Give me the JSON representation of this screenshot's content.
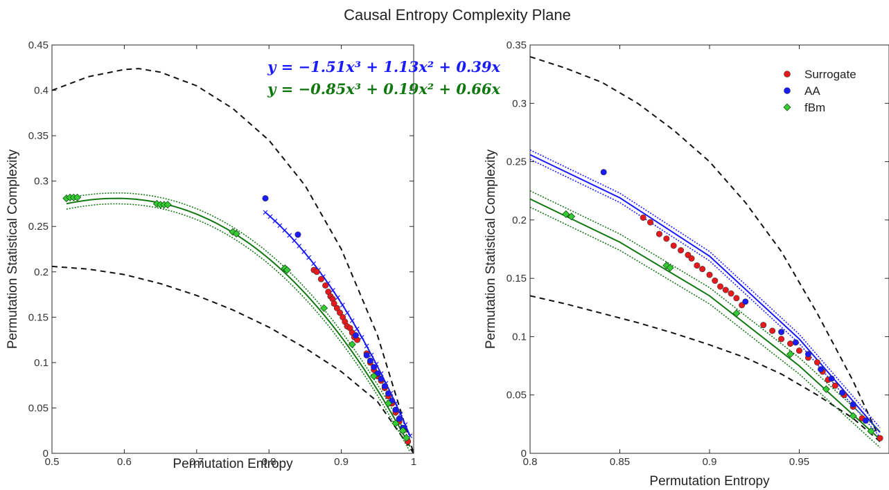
{
  "figure": {
    "title": "Causal Entropy Complexity Plane"
  },
  "chart_data": [
    {
      "type": "scatter",
      "xlabel": "Permutation Entropy",
      "ylabel": "Permutation Statistical Complexity",
      "xlim": [
        0.5,
        1.0
      ],
      "ylim": [
        0,
        0.45
      ],
      "xticks": [
        "0.5",
        "0.6",
        "0.7",
        "0.8",
        "0.9",
        "1"
      ],
      "yticks": [
        "0",
        "0.05",
        "0.1",
        "0.15",
        "0.2",
        "0.25",
        "0.3",
        "0.35",
        "0.4",
        "0.45"
      ],
      "grid": false,
      "annotations": [
        {
          "text": "y = −1.51x³ + 1.13x² + 0.39x",
          "color": "#1a1aff"
        },
        {
          "text": "y = −0.85x³ + 0.19x² + 0.66x",
          "color": "#117711"
        }
      ],
      "bounds": {
        "upper": [
          [
            0.5,
            0.4
          ],
          [
            0.55,
            0.415
          ],
          [
            0.6,
            0.423
          ],
          [
            0.62,
            0.424
          ],
          [
            0.65,
            0.42
          ],
          [
            0.7,
            0.405
          ],
          [
            0.75,
            0.38
          ],
          [
            0.8,
            0.345
          ],
          [
            0.85,
            0.295
          ],
          [
            0.9,
            0.225
          ],
          [
            0.95,
            0.13
          ],
          [
            1.0,
            0.0
          ]
        ],
        "lower": [
          [
            0.5,
            0.206
          ],
          [
            0.55,
            0.203
          ],
          [
            0.6,
            0.197
          ],
          [
            0.65,
            0.187
          ],
          [
            0.7,
            0.174
          ],
          [
            0.75,
            0.158
          ],
          [
            0.8,
            0.139
          ],
          [
            0.85,
            0.116
          ],
          [
            0.9,
            0.09
          ],
          [
            0.95,
            0.057
          ],
          [
            1.0,
            0.0
          ]
        ]
      },
      "fits": [
        {
          "color": "#1a1aff",
          "style": "crossed",
          "coeffs": [
            -1.51,
            1.13,
            0.39
          ],
          "xrange": [
            0.795,
            0.995
          ]
        },
        {
          "color": "#117711",
          "style": "solid",
          "coeffs": [
            -0.85,
            0.19,
            0.66
          ],
          "xrange": [
            0.52,
            0.995
          ],
          "band": 0.006
        }
      ],
      "series": [
        {
          "name": "Surrogate",
          "marker": "circle",
          "color": "#e8191c",
          "x": [
            0.862,
            0.866,
            0.872,
            0.878,
            0.882,
            0.885,
            0.888,
            0.89,
            0.894,
            0.898,
            0.902,
            0.905,
            0.908,
            0.912,
            0.915,
            0.918,
            0.922,
            0.935,
            0.94,
            0.945,
            0.95,
            0.955,
            0.96,
            0.965,
            0.97,
            0.975,
            0.98,
            0.985,
            0.992
          ],
          "y": [
            0.202,
            0.2,
            0.192,
            0.185,
            0.178,
            0.173,
            0.17,
            0.165,
            0.16,
            0.155,
            0.15,
            0.145,
            0.14,
            0.138,
            0.133,
            0.128,
            0.125,
            0.11,
            0.1,
            0.092,
            0.085,
            0.08,
            0.072,
            0.063,
            0.055,
            0.045,
            0.035,
            0.025,
            0.013
          ]
        },
        {
          "name": "AA",
          "marker": "circle",
          "color": "#1a1aff",
          "x": [
            0.795,
            0.84,
            0.92,
            0.935,
            0.94,
            0.945,
            0.95,
            0.955,
            0.96,
            0.965,
            0.97,
            0.975,
            0.98,
            0.985
          ],
          "y": [
            0.281,
            0.241,
            0.13,
            0.108,
            0.102,
            0.095,
            0.088,
            0.082,
            0.074,
            0.066,
            0.058,
            0.048,
            0.038,
            0.028
          ]
        },
        {
          "name": "fBm",
          "marker": "diamond",
          "color": "#33cc33",
          "x": [
            0.52,
            0.525,
            0.53,
            0.535,
            0.645,
            0.65,
            0.655,
            0.66,
            0.75,
            0.755,
            0.822,
            0.825,
            0.876,
            0.915,
            0.945,
            0.965,
            0.975,
            0.985,
            0.99
          ],
          "y": [
            0.281,
            0.282,
            0.282,
            0.282,
            0.275,
            0.274,
            0.274,
            0.274,
            0.244,
            0.242,
            0.204,
            0.202,
            0.16,
            0.12,
            0.085,
            0.055,
            0.033,
            0.025,
            0.017
          ]
        }
      ]
    },
    {
      "type": "scatter",
      "xlabel": "Permutation Entropy",
      "ylabel": "Permutation Statistical Complexity",
      "xlim": [
        0.8,
        1.0
      ],
      "ylim": [
        0,
        0.35
      ],
      "xticks": [
        "0.8",
        "0.85",
        "0.9",
        "0.95"
      ],
      "yticks": [
        "0",
        "0.05",
        "0.1",
        "0.15",
        "0.2",
        "0.25",
        "0.3",
        "0.35"
      ],
      "grid": false,
      "legend": {
        "placement": "top-right",
        "entries": [
          {
            "label": "Surrogate",
            "marker": "circle",
            "color": "#e8191c"
          },
          {
            "label": "AA",
            "marker": "circle",
            "color": "#1a1aff"
          },
          {
            "label": "fBm",
            "marker": "diamond",
            "color": "#33cc33"
          }
        ]
      },
      "bounds": {
        "upper": [
          [
            0.8,
            0.34
          ],
          [
            0.82,
            0.33
          ],
          [
            0.84,
            0.318
          ],
          [
            0.86,
            0.3
          ],
          [
            0.88,
            0.277
          ],
          [
            0.9,
            0.25
          ],
          [
            0.92,
            0.215
          ],
          [
            0.94,
            0.173
          ],
          [
            0.96,
            0.12
          ],
          [
            0.98,
            0.062
          ],
          [
            0.995,
            0.012
          ]
        ],
        "lower": [
          [
            0.8,
            0.135
          ],
          [
            0.82,
            0.128
          ],
          [
            0.84,
            0.12
          ],
          [
            0.86,
            0.112
          ],
          [
            0.88,
            0.103
          ],
          [
            0.9,
            0.093
          ],
          [
            0.92,
            0.082
          ],
          [
            0.94,
            0.068
          ],
          [
            0.96,
            0.05
          ],
          [
            0.98,
            0.03
          ],
          [
            0.995,
            0.01
          ]
        ]
      },
      "fits": [
        {
          "color": "#1a1aff",
          "style": "solid",
          "points": [
            [
              0.8,
              0.256
            ],
            [
              0.85,
              0.219
            ],
            [
              0.9,
              0.169
            ],
            [
              0.95,
              0.098
            ],
            [
              0.995,
              0.018
            ]
          ],
          "band": 0.004
        },
        {
          "color": "#117711",
          "style": "solid",
          "points": [
            [
              0.8,
              0.218
            ],
            [
              0.85,
              0.181
            ],
            [
              0.9,
              0.135
            ],
            [
              0.95,
              0.075
            ],
            [
              0.995,
              0.012
            ]
          ],
          "band": 0.007
        }
      ],
      "series": [
        {
          "name": "Surrogate",
          "marker": "circle",
          "color": "#e8191c",
          "x": [
            0.863,
            0.867,
            0.872,
            0.876,
            0.88,
            0.884,
            0.888,
            0.89,
            0.893,
            0.896,
            0.9,
            0.903,
            0.906,
            0.909,
            0.912,
            0.915,
            0.918,
            0.93,
            0.935,
            0.94,
            0.945,
            0.95,
            0.955,
            0.96,
            0.963,
            0.966,
            0.97,
            0.975,
            0.98,
            0.985,
            0.995
          ],
          "y": [
            0.202,
            0.198,
            0.188,
            0.184,
            0.178,
            0.174,
            0.17,
            0.167,
            0.161,
            0.158,
            0.153,
            0.148,
            0.143,
            0.14,
            0.137,
            0.133,
            0.127,
            0.11,
            0.105,
            0.098,
            0.094,
            0.088,
            0.082,
            0.078,
            0.07,
            0.063,
            0.058,
            0.05,
            0.04,
            0.03,
            0.013
          ]
        },
        {
          "name": "AA",
          "marker": "circle",
          "color": "#1a1aff",
          "x": [
            0.841,
            0.92,
            0.94,
            0.948,
            0.955,
            0.962,
            0.968,
            0.974,
            0.98,
            0.987
          ],
          "y": [
            0.241,
            0.13,
            0.104,
            0.095,
            0.085,
            0.072,
            0.064,
            0.052,
            0.042,
            0.028
          ]
        },
        {
          "name": "fBm",
          "marker": "diamond",
          "color": "#33cc33",
          "x": [
            0.82,
            0.823,
            0.876,
            0.878,
            0.915,
            0.945,
            0.965,
            0.98,
            0.99
          ],
          "y": [
            0.205,
            0.203,
            0.161,
            0.159,
            0.12,
            0.085,
            0.055,
            0.032,
            0.019
          ]
        }
      ]
    }
  ]
}
